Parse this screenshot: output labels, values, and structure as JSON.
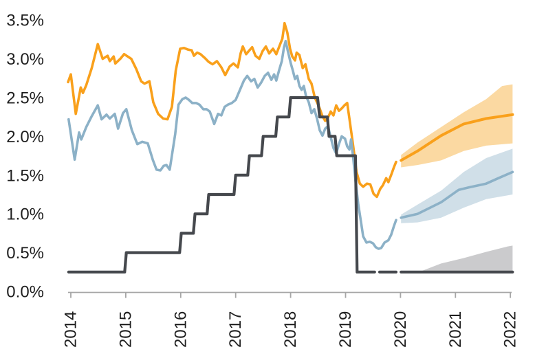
{
  "background": "#FFFFFF",
  "chart_data": {
    "type": "line",
    "title": "",
    "grid": false,
    "legend": "none",
    "y_axis": {
      "tick_labels": [
        "3.5%",
        "3.0%",
        "2.5%",
        "2.0%",
        "1.5%",
        "1.0%",
        "0.5%",
        "0.0%"
      ],
      "tick_values": [
        3.5,
        3.0,
        2.5,
        2.0,
        1.5,
        1.0,
        0.5,
        0.0
      ],
      "range": [
        0,
        3.5
      ],
      "unit": "percent"
    },
    "x_axis": {
      "tick_labels": [
        "2014",
        "2015",
        "2016",
        "2017",
        "2018",
        "2019",
        "2020",
        "2021",
        "2022"
      ],
      "tick_values": [
        2014,
        2015,
        2016,
        2017,
        2018,
        2019,
        2020,
        2021,
        2022
      ],
      "range": [
        2013.95,
        2022.05
      ]
    },
    "colors": {
      "orange_line": "#F9A01B",
      "orange_band": "#FBD9A2",
      "blue_line": "#8CB1C7",
      "blue_band": "#D0DFE8",
      "dark_line": "#45484D",
      "gray_band": "#CBCBCD",
      "axis": "#A6A6A6",
      "label_text": "#1F1F1F"
    },
    "history_series": [
      {
        "name": "orange-history",
        "color": "#F9A01B",
        "width": 3.6,
        "points": [
          [
            2013.95,
            2.7
          ],
          [
            2014.0,
            2.8
          ],
          [
            2014.09,
            2.29
          ],
          [
            2014.18,
            2.63
          ],
          [
            2014.22,
            2.56
          ],
          [
            2014.28,
            2.66
          ],
          [
            2014.38,
            2.88
          ],
          [
            2014.49,
            3.19
          ],
          [
            2014.58,
            3.0
          ],
          [
            2014.67,
            3.04
          ],
          [
            2014.71,
            2.97
          ],
          [
            2014.78,
            3.03
          ],
          [
            2014.81,
            2.94
          ],
          [
            2014.9,
            3.0
          ],
          [
            2014.97,
            3.06
          ],
          [
            2015.1,
            3.0
          ],
          [
            2015.19,
            2.87
          ],
          [
            2015.28,
            2.71
          ],
          [
            2015.34,
            2.68
          ],
          [
            2015.43,
            2.71
          ],
          [
            2015.5,
            2.44
          ],
          [
            2015.59,
            2.29
          ],
          [
            2015.68,
            2.23
          ],
          [
            2015.76,
            2.22
          ],
          [
            2015.84,
            2.38
          ],
          [
            2015.91,
            2.85
          ],
          [
            2015.99,
            3.13
          ],
          [
            2016.06,
            3.14
          ],
          [
            2016.13,
            3.12
          ],
          [
            2016.2,
            3.11
          ],
          [
            2016.24,
            3.04
          ],
          [
            2016.3,
            3.08
          ],
          [
            2016.36,
            3.06
          ],
          [
            2016.44,
            3.01
          ],
          [
            2016.51,
            2.96
          ],
          [
            2016.58,
            2.93
          ],
          [
            2016.66,
            2.97
          ],
          [
            2016.74,
            2.89
          ],
          [
            2016.81,
            2.79
          ],
          [
            2016.89,
            2.9
          ],
          [
            2016.96,
            2.94
          ],
          [
            2017.04,
            2.89
          ],
          [
            2017.09,
            3.07
          ],
          [
            2017.13,
            3.16
          ],
          [
            2017.19,
            3.06
          ],
          [
            2017.25,
            3.11
          ],
          [
            2017.3,
            3.15
          ],
          [
            2017.36,
            3.04
          ],
          [
            2017.43,
            3.0
          ],
          [
            2017.49,
            3.1
          ],
          [
            2017.55,
            3.16
          ],
          [
            2017.61,
            3.07
          ],
          [
            2017.68,
            3.13
          ],
          [
            2017.74,
            3.06
          ],
          [
            2017.8,
            3.17
          ],
          [
            2017.85,
            3.26
          ],
          [
            2017.89,
            3.46
          ],
          [
            2017.94,
            3.34
          ],
          [
            2017.99,
            3.13
          ],
          [
            2018.03,
            3.03
          ],
          [
            2018.08,
            2.98
          ],
          [
            2018.11,
            3.08
          ],
          [
            2018.16,
            3.05
          ],
          [
            2018.22,
            2.88
          ],
          [
            2018.27,
            2.93
          ],
          [
            2018.33,
            2.74
          ],
          [
            2018.38,
            2.68
          ],
          [
            2018.44,
            2.5
          ],
          [
            2018.48,
            2.44
          ],
          [
            2018.53,
            2.36
          ],
          [
            2018.58,
            2.26
          ],
          [
            2018.63,
            2.2
          ],
          [
            2018.68,
            2.24
          ],
          [
            2018.73,
            2.32
          ],
          [
            2018.78,
            2.27
          ],
          [
            2018.83,
            2.4
          ],
          [
            2018.88,
            2.33
          ],
          [
            2018.93,
            2.36
          ],
          [
            2018.98,
            2.4
          ],
          [
            2019.03,
            2.43
          ],
          [
            2019.08,
            2.18
          ],
          [
            2019.14,
            1.87
          ],
          [
            2019.2,
            1.54
          ],
          [
            2019.26,
            1.39
          ],
          [
            2019.32,
            1.35
          ],
          [
            2019.39,
            1.39
          ],
          [
            2019.45,
            1.38
          ],
          [
            2019.51,
            1.26
          ],
          [
            2019.57,
            1.22
          ],
          [
            2019.63,
            1.32
          ],
          [
            2019.68,
            1.37
          ],
          [
            2019.74,
            1.46
          ],
          [
            2019.78,
            1.41
          ],
          [
            2019.84,
            1.52
          ],
          [
            2019.88,
            1.6
          ],
          [
            2019.92,
            1.67
          ]
        ]
      },
      {
        "name": "blue-history",
        "color": "#8CB1C7",
        "width": 3.6,
        "points": [
          [
            2013.96,
            2.22
          ],
          [
            2014.07,
            1.7
          ],
          [
            2014.15,
            2.05
          ],
          [
            2014.19,
            1.96
          ],
          [
            2014.28,
            2.12
          ],
          [
            2014.38,
            2.26
          ],
          [
            2014.49,
            2.4
          ],
          [
            2014.56,
            2.22
          ],
          [
            2014.65,
            2.28
          ],
          [
            2014.71,
            2.23
          ],
          [
            2014.8,
            2.29
          ],
          [
            2014.86,
            2.1
          ],
          [
            2014.95,
            2.3
          ],
          [
            2015.01,
            2.35
          ],
          [
            2015.11,
            2.08
          ],
          [
            2015.21,
            1.9
          ],
          [
            2015.3,
            1.93
          ],
          [
            2015.4,
            1.91
          ],
          [
            2015.49,
            1.7
          ],
          [
            2015.56,
            1.57
          ],
          [
            2015.63,
            1.56
          ],
          [
            2015.69,
            1.62
          ],
          [
            2015.74,
            1.63
          ],
          [
            2015.8,
            1.57
          ],
          [
            2015.9,
            2.03
          ],
          [
            2015.96,
            2.41
          ],
          [
            2016.03,
            2.48
          ],
          [
            2016.09,
            2.5
          ],
          [
            2016.15,
            2.47
          ],
          [
            2016.21,
            2.43
          ],
          [
            2016.28,
            2.43
          ],
          [
            2016.34,
            2.41
          ],
          [
            2016.41,
            2.35
          ],
          [
            2016.47,
            2.35
          ],
          [
            2016.53,
            2.32
          ],
          [
            2016.61,
            2.16
          ],
          [
            2016.68,
            2.29
          ],
          [
            2016.74,
            2.27
          ],
          [
            2016.8,
            2.38
          ],
          [
            2016.86,
            2.41
          ],
          [
            2016.93,
            2.43
          ],
          [
            2017.0,
            2.47
          ],
          [
            2017.09,
            2.62
          ],
          [
            2017.15,
            2.72
          ],
          [
            2017.21,
            2.78
          ],
          [
            2017.28,
            2.71
          ],
          [
            2017.34,
            2.74
          ],
          [
            2017.4,
            2.63
          ],
          [
            2017.46,
            2.69
          ],
          [
            2017.53,
            2.78
          ],
          [
            2017.59,
            2.82
          ],
          [
            2017.65,
            2.73
          ],
          [
            2017.7,
            2.8
          ],
          [
            2017.74,
            2.72
          ],
          [
            2017.79,
            2.85
          ],
          [
            2017.84,
            2.97
          ],
          [
            2017.88,
            3.15
          ],
          [
            2017.91,
            3.23
          ],
          [
            2017.95,
            3.1
          ],
          [
            2018.0,
            2.95
          ],
          [
            2018.04,
            2.85
          ],
          [
            2018.08,
            2.74
          ],
          [
            2018.12,
            2.78
          ],
          [
            2018.16,
            2.65
          ],
          [
            2018.2,
            2.6
          ],
          [
            2018.24,
            2.65
          ],
          [
            2018.28,
            2.52
          ],
          [
            2018.33,
            2.44
          ],
          [
            2018.38,
            2.3
          ],
          [
            2018.43,
            2.35
          ],
          [
            2018.48,
            2.23
          ],
          [
            2018.53,
            2.08
          ],
          [
            2018.58,
            2.01
          ],
          [
            2018.63,
            2.1
          ],
          [
            2018.68,
            2.13
          ],
          [
            2018.73,
            1.99
          ],
          [
            2018.78,
            1.85
          ],
          [
            2018.83,
            1.78
          ],
          [
            2018.88,
            1.9
          ],
          [
            2018.93,
            2.0
          ],
          [
            2018.99,
            1.97
          ],
          [
            2019.03,
            1.87
          ],
          [
            2019.07,
            1.83
          ],
          [
            2019.1,
            1.96
          ],
          [
            2019.14,
            1.72
          ],
          [
            2019.18,
            1.43
          ],
          [
            2019.23,
            1.13
          ],
          [
            2019.28,
            0.9
          ],
          [
            2019.32,
            0.71
          ],
          [
            2019.38,
            0.63
          ],
          [
            2019.44,
            0.64
          ],
          [
            2019.5,
            0.62
          ],
          [
            2019.55,
            0.57
          ],
          [
            2019.6,
            0.55
          ],
          [
            2019.65,
            0.56
          ],
          [
            2019.71,
            0.63
          ],
          [
            2019.78,
            0.66
          ],
          [
            2019.83,
            0.73
          ],
          [
            2019.88,
            0.84
          ],
          [
            2019.92,
            0.92
          ]
        ]
      },
      {
        "name": "gray-policy-history",
        "color": "#45484D",
        "width": 4.2,
        "points": [
          [
            2013.96,
            0.25
          ],
          [
            2014.98,
            0.25
          ],
          [
            2015.01,
            0.5
          ],
          [
            2015.98,
            0.5
          ],
          [
            2016.01,
            0.75
          ],
          [
            2016.23,
            0.75
          ],
          [
            2016.26,
            1.0
          ],
          [
            2016.48,
            1.0
          ],
          [
            2016.51,
            1.25
          ],
          [
            2016.97,
            1.25
          ],
          [
            2017.0,
            1.5
          ],
          [
            2017.22,
            1.5
          ],
          [
            2017.25,
            1.75
          ],
          [
            2017.47,
            1.75
          ],
          [
            2017.5,
            2.0
          ],
          [
            2017.73,
            2.0
          ],
          [
            2017.76,
            2.25
          ],
          [
            2017.97,
            2.25
          ],
          [
            2018.0,
            2.5
          ],
          [
            2018.49,
            2.5
          ],
          [
            2018.53,
            2.25
          ],
          [
            2018.67,
            2.25
          ],
          [
            2018.7,
            2.0
          ],
          [
            2018.81,
            2.0
          ],
          [
            2018.84,
            1.75
          ],
          [
            2019.18,
            1.75
          ],
          [
            2019.21,
            0.25
          ],
          [
            2019.53,
            0.25
          ]
        ]
      },
      {
        "name": "gray-policy-history-dash",
        "color": "#45484D",
        "width": 4.2,
        "points": [
          [
            2019.62,
            0.25
          ],
          [
            2019.92,
            0.25
          ]
        ]
      }
    ],
    "forecast_series": [
      {
        "name": "orange-forecast",
        "line_color": "#F9A01B",
        "band_color": "#FBD9A2",
        "width": 4.0,
        "line": [
          [
            2020.01,
            1.69
          ],
          [
            2020.31,
            1.81
          ],
          [
            2020.74,
            2.01
          ],
          [
            2021.15,
            2.16
          ],
          [
            2021.56,
            2.23
          ],
          [
            2022.04,
            2.28
          ]
        ],
        "upper": [
          [
            2020.01,
            1.76
          ],
          [
            2020.31,
            1.92
          ],
          [
            2020.74,
            2.12
          ],
          [
            2021.15,
            2.31
          ],
          [
            2021.56,
            2.48
          ],
          [
            2021.85,
            2.65
          ],
          [
            2022.04,
            2.67
          ]
        ],
        "lower": [
          [
            2020.01,
            1.6
          ],
          [
            2020.31,
            1.63
          ],
          [
            2020.74,
            1.69
          ],
          [
            2021.15,
            1.81
          ],
          [
            2021.56,
            1.88
          ],
          [
            2022.04,
            1.91
          ]
        ]
      },
      {
        "name": "blue-forecast",
        "line_color": "#8CB1C7",
        "band_color": "#D0DFE8",
        "width": 3.6,
        "line": [
          [
            2020.01,
            0.95
          ],
          [
            2020.31,
            1.0
          ],
          [
            2020.74,
            1.15
          ],
          [
            2021.06,
            1.31
          ],
          [
            2021.24,
            1.34
          ],
          [
            2021.56,
            1.39
          ],
          [
            2021.78,
            1.46
          ],
          [
            2022.04,
            1.54
          ]
        ],
        "upper": [
          [
            2020.01,
            0.99
          ],
          [
            2020.31,
            1.12
          ],
          [
            2020.74,
            1.3
          ],
          [
            2021.15,
            1.54
          ],
          [
            2021.56,
            1.72
          ],
          [
            2022.04,
            1.84
          ]
        ],
        "lower": [
          [
            2020.01,
            0.88
          ],
          [
            2020.31,
            0.89
          ],
          [
            2020.74,
            0.95
          ],
          [
            2021.15,
            1.08
          ],
          [
            2021.56,
            1.19
          ],
          [
            2022.04,
            1.25
          ]
        ]
      },
      {
        "name": "gray-forecast",
        "line_color": "#45484D",
        "band_color": "#CBCBCD",
        "width": 4.2,
        "line": [
          [
            2020.01,
            0.25
          ],
          [
            2022.04,
            0.25
          ]
        ],
        "upper": [
          [
            2020.37,
            0.26
          ],
          [
            2020.74,
            0.36
          ],
          [
            2021.15,
            0.43
          ],
          [
            2021.56,
            0.51
          ],
          [
            2021.95,
            0.58
          ],
          [
            2022.04,
            0.59
          ]
        ],
        "lower": [
          [
            2020.37,
            0.25
          ],
          [
            2022.04,
            0.25
          ]
        ]
      }
    ]
  }
}
